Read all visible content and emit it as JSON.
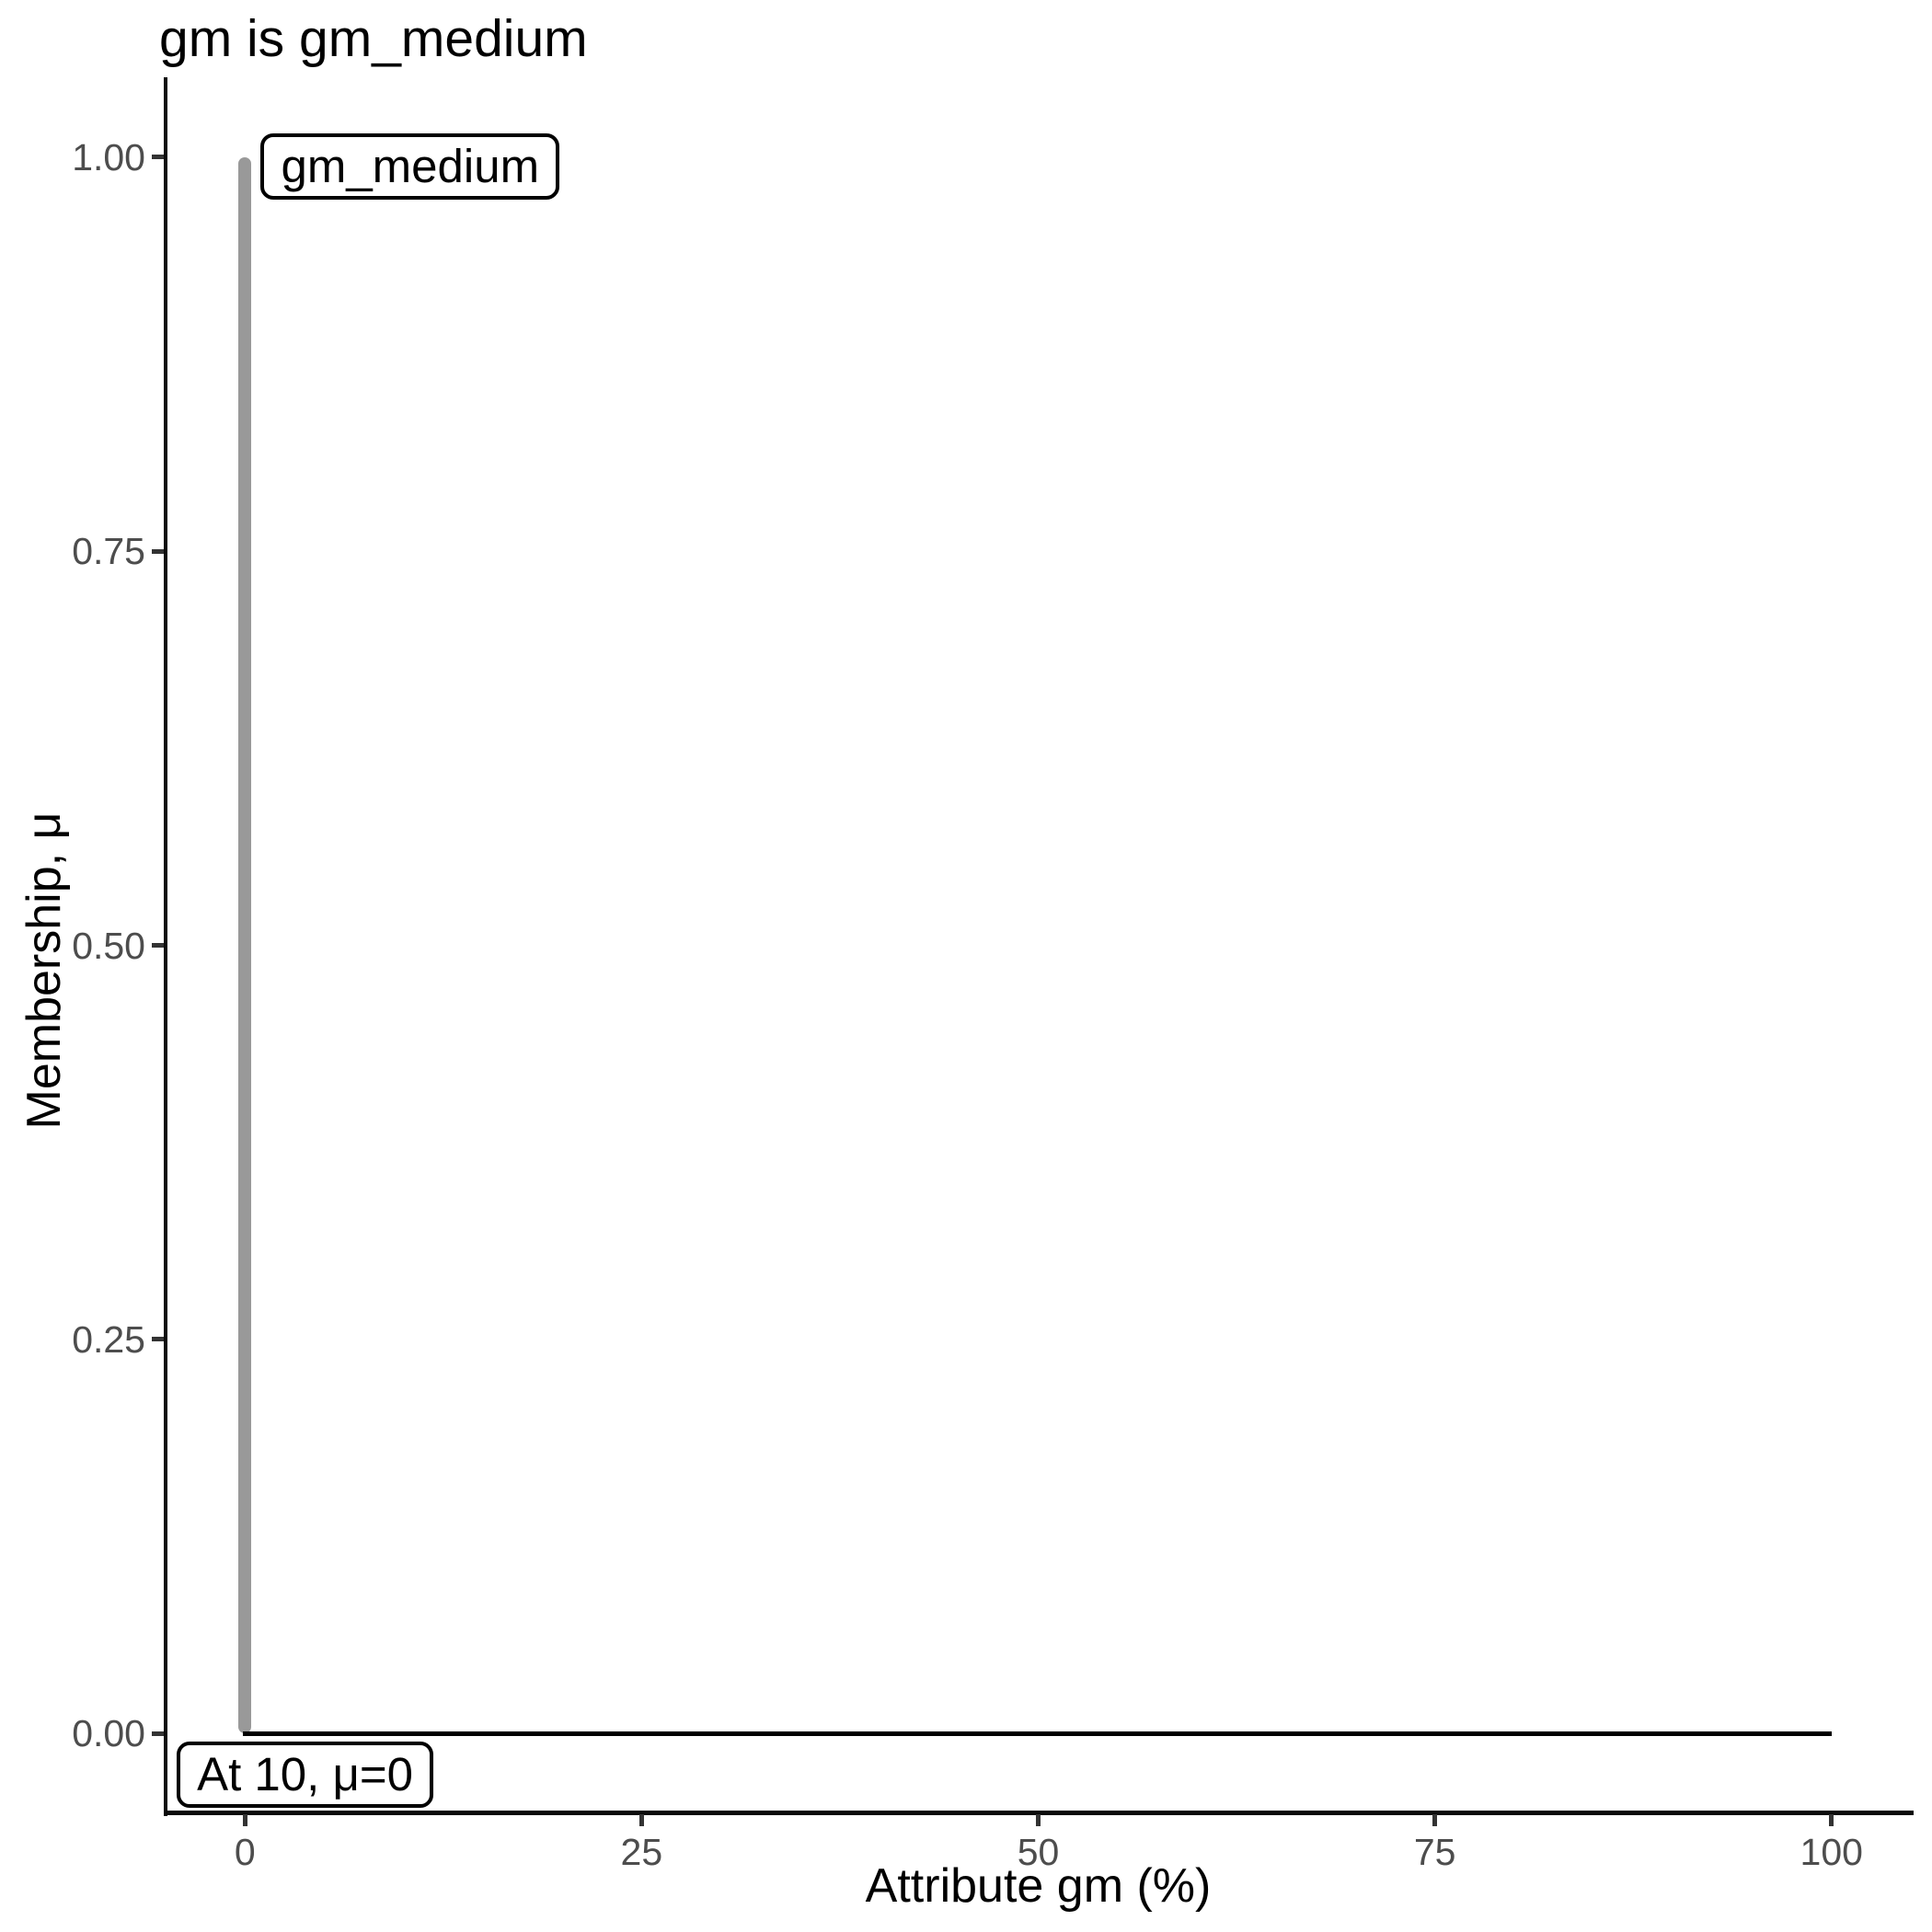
{
  "chart_data": {
    "type": "line",
    "title": "gm is gm_medium",
    "xlabel": "Attribute gm (%)",
    "ylabel": "Membership, μ",
    "xlim": [
      -5,
      105
    ],
    "ylim": [
      -0.05,
      1.05
    ],
    "grid": false,
    "legend": "none",
    "x_axis": {
      "tick_values": [
        0,
        25,
        50,
        75,
        100
      ],
      "tick_labels": [
        "0",
        "25",
        "50",
        "75",
        "100"
      ]
    },
    "y_axis": {
      "tick_values": [
        0,
        0.25,
        0.5,
        0.75,
        1.0
      ],
      "tick_labels": [
        "0.00",
        "0.25",
        "0.50",
        "0.75",
        "1.00"
      ]
    },
    "series": [
      {
        "name": "gm_medium membership spike",
        "type": "segment",
        "x1": 0,
        "y1": 0,
        "x2": 0,
        "y2": 1,
        "color": "#999999",
        "width": 14,
        "linecap": "round"
      },
      {
        "name": "membership zero baseline",
        "type": "segment",
        "x1": 0,
        "y1": 0,
        "x2": 100,
        "y2": 0,
        "color": "#000000",
        "width": 5,
        "linecap": "butt"
      }
    ],
    "annotations": [
      {
        "text": "gm_medium",
        "x": 1.0,
        "y": 0.994,
        "anchor": "left-middle"
      },
      {
        "text": "At 10, μ=0",
        "x": -4.3,
        "y": -0.005,
        "anchor": "left-top"
      }
    ],
    "colors": {
      "background": "#ffffff",
      "axis_line": "#0a0a0a",
      "tick_mark": "#333333",
      "tick_label": "#4d4d4d",
      "title_text": "#000000",
      "axis_title_text": "#000000",
      "highlight_line": "#999999",
      "function_line": "#000000",
      "label_box_border": "#000000",
      "label_box_fill": "#ffffff",
      "label_box_text": "#000000"
    }
  }
}
